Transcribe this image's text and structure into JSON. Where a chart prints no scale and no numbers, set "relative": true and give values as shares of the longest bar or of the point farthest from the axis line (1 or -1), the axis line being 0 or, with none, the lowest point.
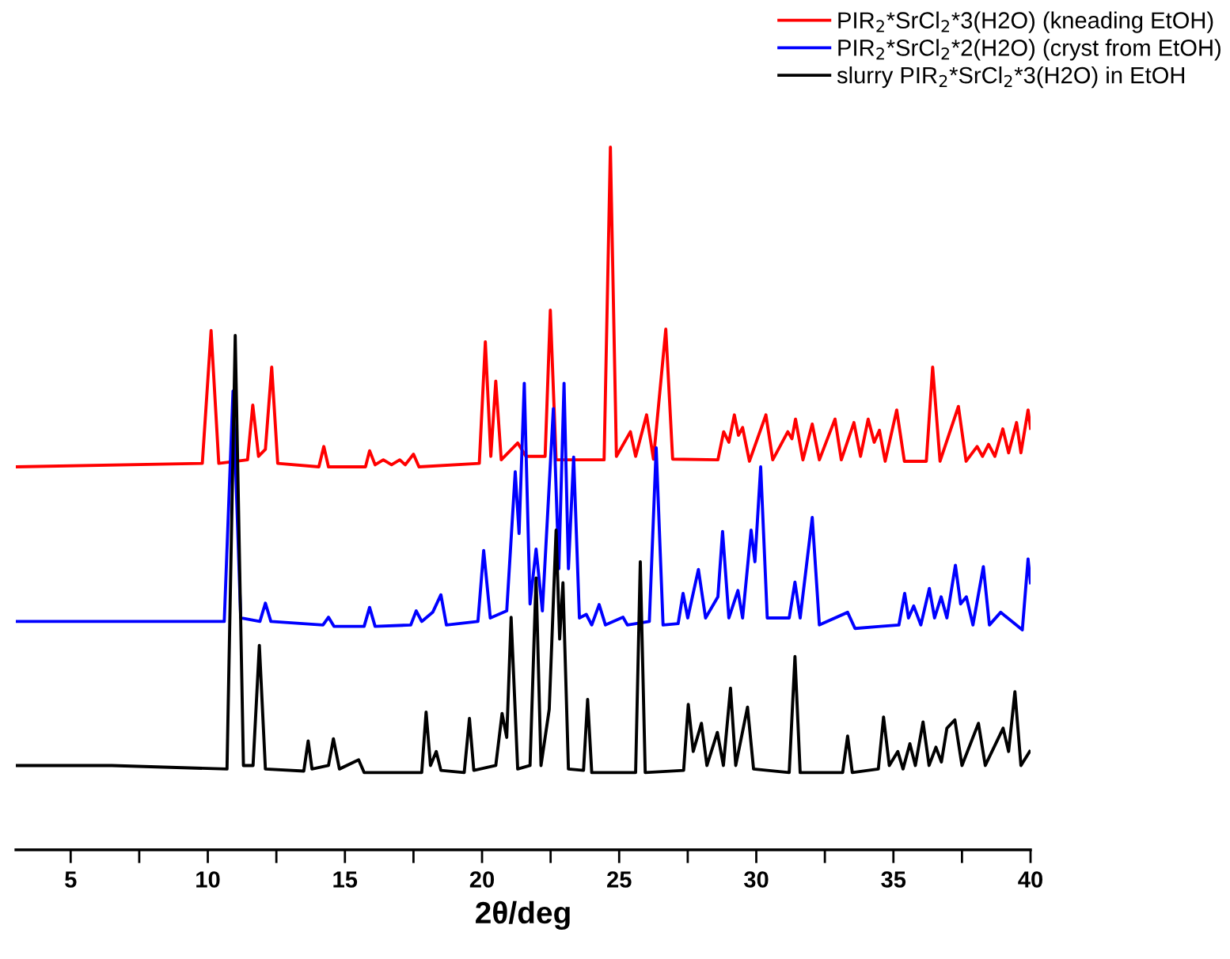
{
  "chart_data": {
    "type": "line",
    "xlabel": "2θ/deg",
    "relative": true,
    "legend": "top right",
    "xlim": [
      3,
      40
    ],
    "xticks": [
      5,
      {
        "value": 7.5,
        "label": null
      },
      10,
      {
        "value": 12.5,
        "label": null
      },
      15,
      {
        "value": 17.5,
        "label": null
      },
      20,
      {
        "value": 22.5,
        "label": null
      },
      25,
      {
        "value": 27.5,
        "label": null
      },
      30,
      {
        "value": 32.5,
        "label": null
      },
      35,
      {
        "value": 37.5,
        "label": null
      },
      40
    ],
    "series": [
      {
        "name": "PIR$_{2}$*SrCl$_{2}$*3(H2O) (kneading EtOH)",
        "color": "#ff0000",
        "x": [
          3.0,
          9.8,
          10.12,
          10.4,
          11.45,
          11.64,
          11.85,
          12.1,
          12.33,
          12.55,
          14.05,
          14.23,
          14.4,
          15.75,
          15.9,
          16.1,
          16.4,
          16.7,
          17.0,
          17.2,
          17.5,
          17.7,
          19.9,
          20.12,
          20.32,
          20.5,
          20.7,
          21.3,
          21.6,
          22.3,
          22.49,
          22.7,
          24.45,
          24.68,
          24.9,
          25.41,
          25.6,
          26.0,
          26.25,
          26.7,
          26.95,
          28.6,
          28.81,
          29.0,
          29.2,
          29.35,
          29.5,
          29.75,
          30.35,
          30.6,
          31.15,
          31.3,
          31.43,
          31.7,
          32.04,
          32.3,
          32.87,
          33.1,
          33.56,
          33.8,
          34.08,
          34.3,
          34.49,
          34.7,
          35.12,
          35.4,
          36.2,
          36.43,
          36.7,
          37.37,
          37.65,
          38.05,
          38.25,
          38.47,
          38.7,
          38.99,
          39.2,
          39.49,
          39.65,
          39.91,
          40.0
        ],
        "values": [
          0.545,
          0.55,
          0.739,
          0.55,
          0.555,
          0.633,
          0.56,
          0.57,
          0.687,
          0.55,
          0.545,
          0.574,
          0.545,
          0.545,
          0.568,
          0.548,
          0.555,
          0.548,
          0.555,
          0.548,
          0.563,
          0.545,
          0.55,
          0.723,
          0.56,
          0.667,
          0.555,
          0.579,
          0.56,
          0.56,
          0.768,
          0.555,
          0.555,
          1.0,
          0.56,
          0.595,
          0.56,
          0.619,
          0.556,
          0.741,
          0.556,
          0.555,
          0.595,
          0.58,
          0.619,
          0.59,
          0.601,
          0.553,
          0.619,
          0.555,
          0.595,
          0.585,
          0.613,
          0.555,
          0.606,
          0.555,
          0.613,
          0.555,
          0.608,
          0.56,
          0.613,
          0.58,
          0.597,
          0.553,
          0.626,
          0.553,
          0.553,
          0.687,
          0.553,
          0.631,
          0.553,
          0.574,
          0.56,
          0.577,
          0.56,
          0.599,
          0.565,
          0.608,
          0.565,
          0.626,
          0.6
        ]
      },
      {
        "name": "PIR$_{2}$*SrCl$_{2}$*2(H2O) (cryst from EtOH)",
        "color": "#0000ff",
        "x": [
          3.0,
          10.6,
          10.92,
          11.2,
          11.9,
          12.1,
          12.3,
          14.2,
          14.4,
          14.6,
          15.7,
          15.9,
          16.1,
          17.4,
          17.6,
          17.8,
          18.2,
          18.5,
          18.7,
          19.85,
          20.06,
          20.3,
          20.9,
          21.21,
          21.35,
          21.54,
          21.75,
          21.97,
          22.2,
          22.6,
          22.8,
          22.99,
          23.15,
          23.34,
          23.55,
          23.8,
          24.0,
          24.27,
          24.5,
          25.14,
          25.3,
          26.1,
          26.35,
          26.6,
          27.15,
          27.33,
          27.5,
          27.89,
          28.15,
          28.6,
          28.77,
          29.0,
          29.33,
          29.5,
          29.81,
          29.95,
          30.16,
          30.4,
          31.2,
          31.41,
          31.6,
          32.04,
          32.3,
          33.33,
          33.6,
          34.53,
          35.2,
          35.41,
          35.55,
          35.74,
          36.0,
          36.31,
          36.5,
          36.74,
          36.95,
          37.26,
          37.45,
          37.66,
          37.9,
          38.28,
          38.5,
          38.91,
          39.7,
          39.91,
          40.0
        ],
        "values": [
          0.325,
          0.325,
          0.653,
          0.33,
          0.325,
          0.351,
          0.325,
          0.32,
          0.331,
          0.318,
          0.318,
          0.345,
          0.318,
          0.32,
          0.34,
          0.325,
          0.338,
          0.363,
          0.32,
          0.325,
          0.426,
          0.33,
          0.34,
          0.538,
          0.45,
          0.664,
          0.35,
          0.428,
          0.34,
          0.628,
          0.4,
          0.664,
          0.4,
          0.559,
          0.33,
          0.335,
          0.32,
          0.349,
          0.32,
          0.331,
          0.32,
          0.325,
          0.572,
          0.32,
          0.322,
          0.365,
          0.33,
          0.399,
          0.33,
          0.36,
          0.453,
          0.33,
          0.369,
          0.33,
          0.455,
          0.41,
          0.545,
          0.33,
          0.33,
          0.381,
          0.33,
          0.473,
          0.32,
          0.338,
          0.315,
          0.318,
          0.32,
          0.365,
          0.33,
          0.347,
          0.32,
          0.372,
          0.33,
          0.36,
          0.33,
          0.405,
          0.35,
          0.36,
          0.32,
          0.403,
          0.32,
          0.338,
          0.313,
          0.414,
          0.38
        ]
      },
      {
        "name": "slurry PIR$_{2}$*SrCl$_{2}$*3(H2O) in EtOH",
        "color": "#000000",
        "x": [
          3.0,
          6.5,
          10.7,
          11.0,
          11.3,
          11.65,
          11.88,
          12.1,
          13.5,
          13.66,
          13.8,
          14.4,
          14.58,
          14.8,
          15.5,
          15.7,
          17.8,
          17.96,
          18.12,
          18.33,
          18.5,
          19.35,
          19.54,
          19.7,
          20.5,
          20.73,
          20.9,
          21.06,
          21.3,
          21.75,
          21.97,
          22.15,
          22.45,
          22.7,
          22.83,
          22.95,
          23.15,
          23.7,
          23.85,
          24.0,
          25.6,
          25.77,
          25.95,
          27.35,
          27.52,
          27.7,
          28.0,
          28.2,
          28.58,
          28.8,
          29.06,
          29.25,
          29.68,
          29.9,
          31.2,
          31.41,
          31.6,
          33.15,
          33.33,
          33.5,
          34.45,
          34.64,
          34.85,
          35.16,
          35.35,
          35.6,
          35.8,
          36.08,
          36.3,
          36.55,
          36.75,
          36.95,
          37.24,
          37.5,
          38.1,
          38.35,
          39.0,
          39.2,
          39.43,
          39.65,
          39.97
        ],
        "values": [
          0.12,
          0.12,
          0.115,
          0.732,
          0.12,
          0.12,
          0.291,
          0.115,
          0.112,
          0.155,
          0.115,
          0.12,
          0.158,
          0.115,
          0.128,
          0.11,
          0.11,
          0.196,
          0.12,
          0.14,
          0.113,
          0.11,
          0.187,
          0.113,
          0.12,
          0.194,
          0.16,
          0.331,
          0.115,
          0.12,
          0.387,
          0.12,
          0.2,
          0.455,
          0.3,
          0.38,
          0.115,
          0.113,
          0.214,
          0.11,
          0.11,
          0.41,
          0.11,
          0.113,
          0.207,
          0.14,
          0.18,
          0.12,
          0.167,
          0.12,
          0.23,
          0.12,
          0.203,
          0.115,
          0.11,
          0.275,
          0.11,
          0.11,
          0.162,
          0.11,
          0.115,
          0.189,
          0.12,
          0.14,
          0.115,
          0.151,
          0.12,
          0.182,
          0.12,
          0.146,
          0.125,
          0.173,
          0.185,
          0.12,
          0.18,
          0.12,
          0.173,
          0.14,
          0.225,
          0.12,
          0.14
        ]
      }
    ]
  }
}
